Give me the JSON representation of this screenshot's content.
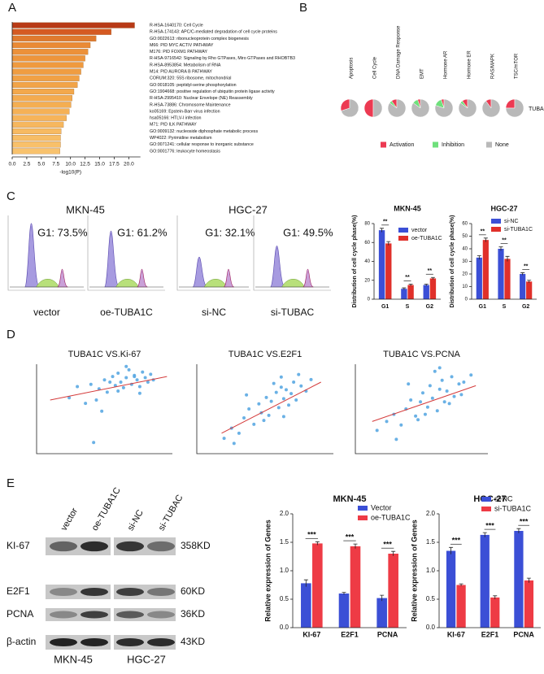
{
  "panel_labels": [
    "A",
    "B",
    "C",
    "D",
    "E"
  ],
  "flow": {
    "cell_lines": [
      "MKN-45",
      "HGC-27"
    ],
    "panels": [
      {
        "gate": "G1: 73.5%",
        "label": "vector"
      },
      {
        "gate": "G1: 61.2%",
        "label": "oe-TUBA1C"
      },
      {
        "gate": "G1: 32.1%",
        "label": "si-NC"
      },
      {
        "gate": "G1: 49.5%",
        "label": "si-TUBAC"
      }
    ]
  },
  "western": {
    "lanes": [
      "vector",
      "oe-TUBA1C",
      "si-NC",
      "si-TUBAC"
    ],
    "proteins": [
      "KI-67",
      "E2F1",
      "PCNA",
      "β-actin"
    ],
    "sizes": [
      "358KD",
      "60KD",
      "36KD",
      "43KD"
    ],
    "cell_lines": [
      "MKN-45",
      "HGC-27"
    ]
  },
  "chart_data": [
    {
      "type": "hbar",
      "x_label": "-log10(P)",
      "categories": [
        "R-HSA-1640170: Cell Cycle",
        "R-HSA-174143: APC/C-mediated degradation of cell cycle proteins",
        "GO:0022613: ribonucleoprotein complex biogenesis",
        "M66: PID MYC ACTIV PATHWAY",
        "M176: PID FOXM1 PATHWAY",
        "R-HSA-9716542: Signaling by Rho GTPases, Miro GTPases and RHOBTB3",
        "R-HSA-8953854: Metabolism of RNA",
        "M14: PID AURORA B PATHWAY",
        "CORUM:320: 55S ribosome, mitochondrial",
        "GO:0018105: peptidyl-serine phosphorylation",
        "GO:1904668: positive regulation of ubiquitin protein ligase activity",
        "R-HSA-2995410: Nuclear Envelope (NE) Reassembly",
        "R-HSA-73886: Chromosome Maintenance",
        "ko05169: Epstein-Barr virus infection",
        "hsa05166: HTLV-I infection",
        "M71: PID ILK PATHWAY",
        "GO:0009132: nucleoside diphosphate metabolic process",
        "WP4022: Pyrimidine metabolism",
        "GO:0071241: cellular response to inorganic substance",
        "GO:0001776: leukocyte homeostasis"
      ],
      "values": [
        21,
        17,
        14.4,
        13.4,
        13,
        12.5,
        12.2,
        11.8,
        11.5,
        11.2,
        10.6,
        10.3,
        10.1,
        9.8,
        9.3,
        8.8,
        8.4,
        8.3,
        8.3,
        8.2
      ],
      "colors": [
        "#b83a16",
        "#d55a22",
        "#e07a2e",
        "#ea8a35",
        "#ec913a",
        "#ee953c",
        "#ef9a3f",
        "#f09d41",
        "#f1a145",
        "#f2a448",
        "#f3a84c",
        "#f4ab4f",
        "#f4ae52",
        "#f5b156",
        "#f6b45a",
        "#f6b75e",
        "#f7ba62",
        "#f7bd66",
        "#f8c06a",
        "#f8c26d"
      ],
      "xlim": [
        0,
        22
      ],
      "xticks": [
        {
          "value": 0,
          "label": "0.0"
        },
        2.5,
        {
          "value": 5,
          "label": "5.0"
        },
        7.5,
        {
          "value": 10,
          "label": "10.0"
        },
        12.5,
        {
          "value": 15,
          "label": "15.0"
        },
        17.5,
        {
          "value": 20,
          "label": "20.0"
        }
      ]
    },
    {
      "type": "pie",
      "row_label": "TUBA1C",
      "categories": [
        "Apoptosis",
        "Cell Cycle",
        "DNA Damage Response",
        "EMT",
        "Hormone AR",
        "Hormone ER",
        "RAS/MAPK",
        "TSC/mTOR"
      ],
      "series": [
        {
          "name": "Activation",
          "color": "#ec3a52",
          "values": [
            30,
            50,
            10,
            5,
            5,
            10,
            10,
            25
          ]
        },
        {
          "name": "Inhibition",
          "color": "#6fe07c",
          "values": [
            0,
            0,
            5,
            10,
            15,
            5,
            0,
            0
          ]
        },
        {
          "name": "None",
          "color": "#b9b9b9",
          "values": [
            70,
            50,
            85,
            85,
            80,
            85,
            90,
            75
          ]
        }
      ]
    },
    {
      "type": "groupbar",
      "title": "MKN-45",
      "y_label": "Distribution of cell cycle phase(%)",
      "categories": [
        "G1",
        "S",
        "G2"
      ],
      "annotations": [
        "**",
        "**",
        "**"
      ],
      "series": [
        {
          "name": "vector",
          "color": "#3b4fd6",
          "values": [
            73,
            11,
            15
          ],
          "errors": [
            2,
            1,
            1
          ]
        },
        {
          "name": "oe-TUBA1C",
          "color": "#e0302a",
          "values": [
            59,
            15,
            22
          ],
          "errors": [
            2,
            1,
            1
          ]
        }
      ],
      "ylim": [
        0,
        80
      ],
      "yticks": [
        0,
        20,
        40,
        60,
        80
      ]
    },
    {
      "type": "groupbar",
      "title": "HGC-27",
      "y_label": "Distribution of cell cycle phase(%)",
      "categories": [
        "G1",
        "S",
        "G2"
      ],
      "annotations": [
        "**",
        "**",
        "**"
      ],
      "series": [
        {
          "name": "si-NC",
          "color": "#3b4fd6",
          "values": [
            33,
            40,
            20
          ],
          "errors": [
            1.5,
            1.5,
            1
          ]
        },
        {
          "name": "si-TUBA1C",
          "color": "#e0302a",
          "values": [
            47,
            32,
            14
          ],
          "errors": [
            1.5,
            2,
            1
          ]
        }
      ],
      "ylim": [
        0,
        60
      ],
      "yticks": [
        0,
        10,
        20,
        30,
        40,
        50,
        60
      ]
    },
    {
      "type": "scatter",
      "title": "TUBA1C VS.Ki-67",
      "xlim": [
        10,
        15
      ],
      "ylim": [
        6,
        14
      ],
      "x": [
        11.2,
        11.8,
        12.0,
        12.3,
        12.5,
        12.6,
        12.8,
        12.9,
        13.0,
        13.1,
        13.2,
        13.3,
        13.4,
        13.5,
        13.6,
        13.7,
        13.8,
        13.9,
        14.0,
        14.1,
        14.2,
        12.2,
        12.7,
        13.0,
        13.3,
        13.6,
        11.5,
        12.4,
        13.8,
        14.3,
        12.1
      ],
      "y": [
        11.0,
        10.5,
        12.2,
        11.8,
        12.6,
        11.5,
        12.9,
        12.1,
        13.2,
        12.4,
        11.9,
        12.8,
        13.5,
        12.2,
        13.0,
        12.6,
        12.0,
        13.3,
        12.8,
        12.4,
        13.1,
        10.8,
        12.4,
        11.6,
        13.8,
        12.9,
        12.0,
        9.8,
        11.4,
        12.6,
        7.0
      ],
      "color": "#5aa8e2",
      "trend": {
        "x": [
          10.5,
          14.8
        ],
        "y": [
          10.8,
          12.9
        ],
        "color": "#d43a3a"
      }
    },
    {
      "type": "scatter",
      "title": "TUBA1C VS.E2F1",
      "xlim": [
        9.5,
        15
      ],
      "ylim": [
        6,
        13
      ],
      "x": [
        10.6,
        10.9,
        11.2,
        11.4,
        11.6,
        11.8,
        12.0,
        12.1,
        12.3,
        12.4,
        12.5,
        12.7,
        12.8,
        12.9,
        13.0,
        13.1,
        13.2,
        13.3,
        13.4,
        13.5,
        13.7,
        13.9,
        14.1,
        11.0,
        12.2,
        12.6,
        13.0,
        13.6,
        11.5,
        12.9
      ],
      "y": [
        7.2,
        8.0,
        7.6,
        8.8,
        9.5,
        8.3,
        9.9,
        9.2,
        10.4,
        9.0,
        10.1,
        10.8,
        9.6,
        11.2,
        10.3,
        11.0,
        9.8,
        10.7,
        11.6,
        10.2,
        11.3,
        10.9,
        11.8,
        6.8,
        8.6,
        11.5,
        8.9,
        12.2,
        10.6,
        12.0
      ],
      "color": "#5aa8e2",
      "trend": {
        "x": [
          10.5,
          14.5
        ],
        "y": [
          7.6,
          11.6
        ],
        "color": "#d43a3a"
      }
    },
    {
      "type": "scatter",
      "title": "TUBA1C VS.PCNA",
      "xlim": [
        9.5,
        15
      ],
      "ylim": [
        8,
        13
      ],
      "x": [
        10.4,
        10.8,
        11.1,
        11.4,
        11.6,
        11.8,
        12.0,
        12.2,
        12.3,
        12.5,
        12.6,
        12.7,
        12.9,
        13.0,
        13.1,
        13.2,
        13.3,
        13.5,
        13.6,
        13.8,
        14.0,
        14.3,
        11.2,
        12.1,
        12.8,
        13.4,
        11.7,
        13.0,
        12.4,
        13.9
      ],
      "y": [
        9.3,
        9.8,
        10.2,
        9.6,
        10.5,
        11.0,
        10.1,
        10.9,
        11.4,
        10.6,
        11.8,
        11.1,
        10.4,
        11.6,
        12.1,
        10.9,
        11.5,
        12.3,
        11.2,
        11.9,
        12.0,
        12.4,
        8.8,
        9.9,
        12.6,
        10.8,
        11.9,
        12.8,
        10.2,
        11.3
      ],
      "color": "#5aa8e2",
      "trend": {
        "x": [
          10.2,
          14.5
        ],
        "y": [
          9.8,
          11.8
        ],
        "color": "#d43a3a"
      }
    },
    {
      "type": "groupbar",
      "title": "MKN-45",
      "y_label": "Relative expression of Genes",
      "categories": [
        "KI-67",
        "E2F1",
        "PCNA"
      ],
      "annotations": [
        "***",
        "***",
        "***"
      ],
      "series": [
        {
          "name": "Vector",
          "color": "#3b4fd6",
          "values": [
            0.78,
            0.6,
            0.52
          ],
          "errors": [
            0.06,
            0.02,
            0.05
          ]
        },
        {
          "name": "oe-TUBA1C",
          "color": "#ee3b45",
          "values": [
            1.48,
            1.43,
            1.3
          ],
          "errors": [
            0.03,
            0.04,
            0.04
          ]
        }
      ],
      "ylim": [
        0,
        2
      ],
      "yticks": [
        {
          "value": 0,
          "label": "0.0"
        },
        0.5,
        {
          "value": 1,
          "label": "1.0"
        },
        1.5,
        {
          "value": 2,
          "label": "2.0"
        }
      ]
    },
    {
      "type": "groupbar",
      "title": "HGC-27",
      "y_label": "Relative expression of Genes",
      "categories": [
        "KI-67",
        "E2F1",
        "PCNA"
      ],
      "annotations": [
        "***",
        "***",
        "***"
      ],
      "series": [
        {
          "name": "si-NC",
          "color": "#3b4fd6",
          "values": [
            1.35,
            1.63,
            1.7
          ],
          "errors": [
            0.06,
            0.04,
            0.04
          ]
        },
        {
          "name": "si-TUBA1C",
          "color": "#ee3b45",
          "values": [
            0.75,
            0.53,
            0.83
          ],
          "errors": [
            0.02,
            0.03,
            0.04
          ]
        }
      ],
      "ylim": [
        0,
        2
      ],
      "yticks": [
        {
          "value": 0,
          "label": "0.0"
        },
        0.5,
        {
          "value": 1,
          "label": "1.0"
        },
        1.5,
        {
          "value": 2,
          "label": "2.0"
        }
      ]
    }
  ]
}
